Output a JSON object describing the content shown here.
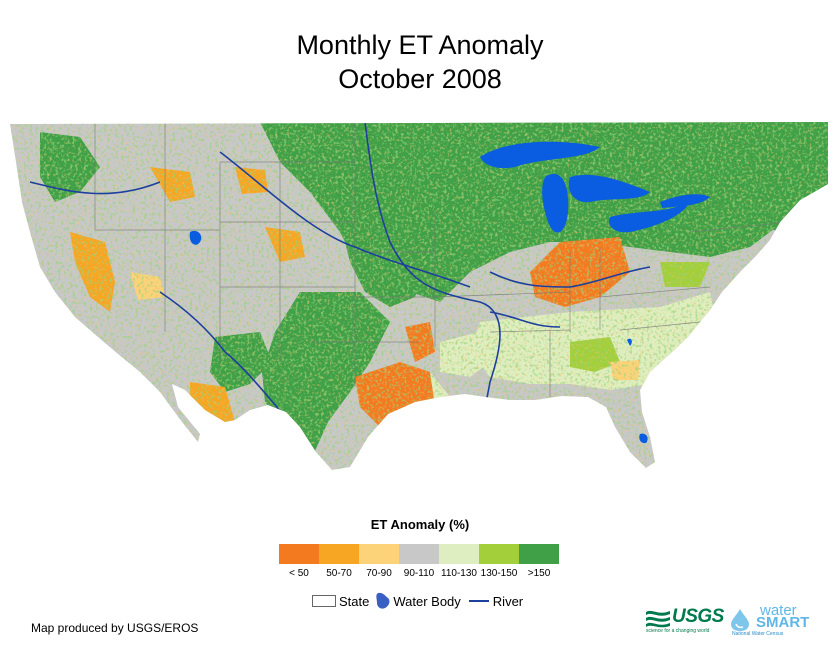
{
  "title": {
    "line1": "Monthly ET Anomaly",
    "line2": "October 2008"
  },
  "legend": {
    "title": "ET Anomaly (%)",
    "classes": [
      {
        "label": "< 50",
        "color": "#f47a20"
      },
      {
        "label": "50-70",
        "color": "#f6a623"
      },
      {
        "label": "70-90",
        "color": "#fdd37a"
      },
      {
        "label": "90-110",
        "color": "#c8c8c8"
      },
      {
        "label": "110-130",
        "color": "#dfeec0"
      },
      {
        "label": "130-150",
        "color": "#a3cf3b"
      },
      {
        "label": ">150",
        "color": "#3fa047"
      }
    ],
    "keys": {
      "state": "State",
      "water": "Water Body",
      "river": "River"
    }
  },
  "colors": {
    "water": "#0a5ce0",
    "river": "#1d3f9e",
    "state_line": "#777777"
  },
  "credit": "Map produced by USGS/EROS",
  "logos": {
    "usgs_word": "USGS",
    "usgs_tagline": "science for a changing world",
    "watersmart_word1": "water",
    "watersmart_word2": "SMART",
    "watersmart_tagline": "National Water Census"
  }
}
